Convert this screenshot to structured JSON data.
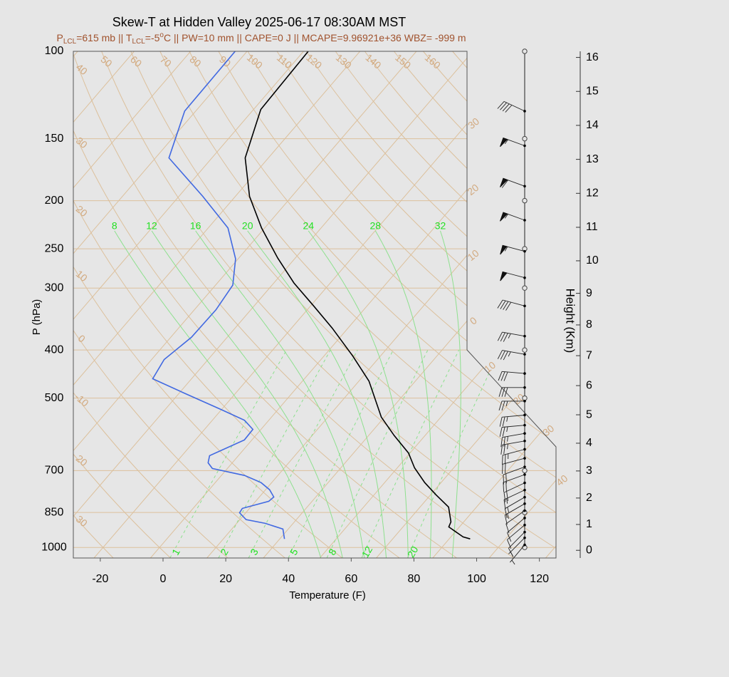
{
  "chart_data": {
    "type": "skew-t",
    "title": "Skew-T at Hidden Valley 2025-06-17 08:30AM MST",
    "subtitle": [
      "P",
      "LCL",
      "=615 mb || T",
      "LCL",
      "=-5",
      "o",
      "C || PW=10 mm || CAPE=0 J || MCAPE=9.96921e+36 WBZ= -999 m"
    ],
    "xlabel": "Temperature (F)",
    "ylabel": "P (hPa)",
    "y2label": "Height (Km)",
    "xlim": [
      -28.6,
      125.3
    ],
    "xticks": [
      -20,
      0,
      20,
      40,
      60,
      80,
      100,
      120
    ],
    "ylim": [
      1050,
      100
    ],
    "ylog": true,
    "yticks": [
      100,
      150,
      200,
      250,
      300,
      400,
      500,
      700,
      850,
      1000
    ],
    "y2ticks": [
      0,
      1,
      2,
      3,
      4,
      5,
      6,
      7,
      8,
      9,
      10,
      11,
      12,
      13,
      14,
      15,
      16
    ],
    "isotherms": [
      {
        "value": -30,
        "label": "30"
      },
      {
        "value": -20,
        "label": "20"
      },
      {
        "value": -10,
        "label": "10"
      },
      0,
      10,
      20,
      30,
      40
    ],
    "dry_adiabats": [
      {
        "value": -30,
        "label": "30"
      },
      {
        "value": -20,
        "label": "20"
      },
      -10,
      0,
      10,
      20,
      30,
      40,
      50,
      60,
      70,
      80,
      90,
      100,
      110,
      120,
      130,
      140,
      150,
      160
    ],
    "moist_adiabats": [
      8,
      12,
      16,
      20,
      24,
      28,
      32
    ],
    "mixing_ratios": [
      1,
      2,
      3,
      5,
      8,
      12,
      20
    ],
    "series": [
      {
        "color": "#000000",
        "pressure": [
          100,
          131,
          164,
          196,
          227,
          261,
          293,
          326,
          361,
          411,
          462,
          546,
          595,
          645,
          691,
          740,
          783,
          829,
          888,
          909,
          952,
          961
        ],
        "values": [
          -92.5,
          -91.7,
          -83.4,
          -71.5,
          -59.0,
          -45.6,
          -33.6,
          -21.0,
          -9.1,
          5.1,
          17.2,
          31.0,
          40.2,
          49.5,
          55.5,
          62.8,
          69.7,
          77.1,
          81.9,
          82.6,
          89.9,
          92.7
        ]
      },
      {
        "color": "#4169e1",
        "pressure": [
          100,
          132,
          164,
          196,
          227,
          262,
          296,
          332,
          377,
          418,
          457,
          490,
          527,
          554,
          578,
          607,
          653,
          675,
          693,
          716,
          740,
          765,
          791,
          807,
          834,
          851,
          879,
          894,
          918,
          961
        ],
        "values": [
          -115.8,
          -115.5,
          -107.7,
          -86.4,
          -69.7,
          -58.8,
          -52.5,
          -51.1,
          -51.4,
          -54.0,
          -52.4,
          -37.8,
          -22.2,
          -11.8,
          -6.6,
          -6.4,
          -13.2,
          -11.7,
          -8.8,
          3.4,
          10.6,
          15.3,
          18.6,
          18.2,
          11.7,
          12.0,
          16.0,
          23.1,
          30.3,
          33.5
        ]
      }
    ],
    "wind": {
      "pressure": [
        132,
        155,
        187,
        219,
        253,
        286,
        326,
        375,
        408,
        446,
        476,
        507,
        541,
        567,
        589,
        610,
        634,
        661,
        688,
        713,
        741,
        766,
        792,
        816,
        843,
        872,
        901,
        931,
        956,
        988
      ],
      "direction": [
        295,
        290,
        290,
        290,
        285,
        285,
        285,
        280,
        280,
        275,
        270,
        270,
        265,
        265,
        260,
        260,
        255,
        255,
        250,
        250,
        245,
        245,
        240,
        240,
        235,
        230,
        230,
        225,
        225,
        220
      ],
      "speed": [
        40,
        55,
        60,
        55,
        55,
        50,
        40,
        35,
        35,
        30,
        30,
        25,
        25,
        25,
        25,
        25,
        25,
        20,
        20,
        20,
        20,
        15,
        15,
        15,
        10,
        10,
        10,
        10,
        5,
        5
      ]
    }
  }
}
